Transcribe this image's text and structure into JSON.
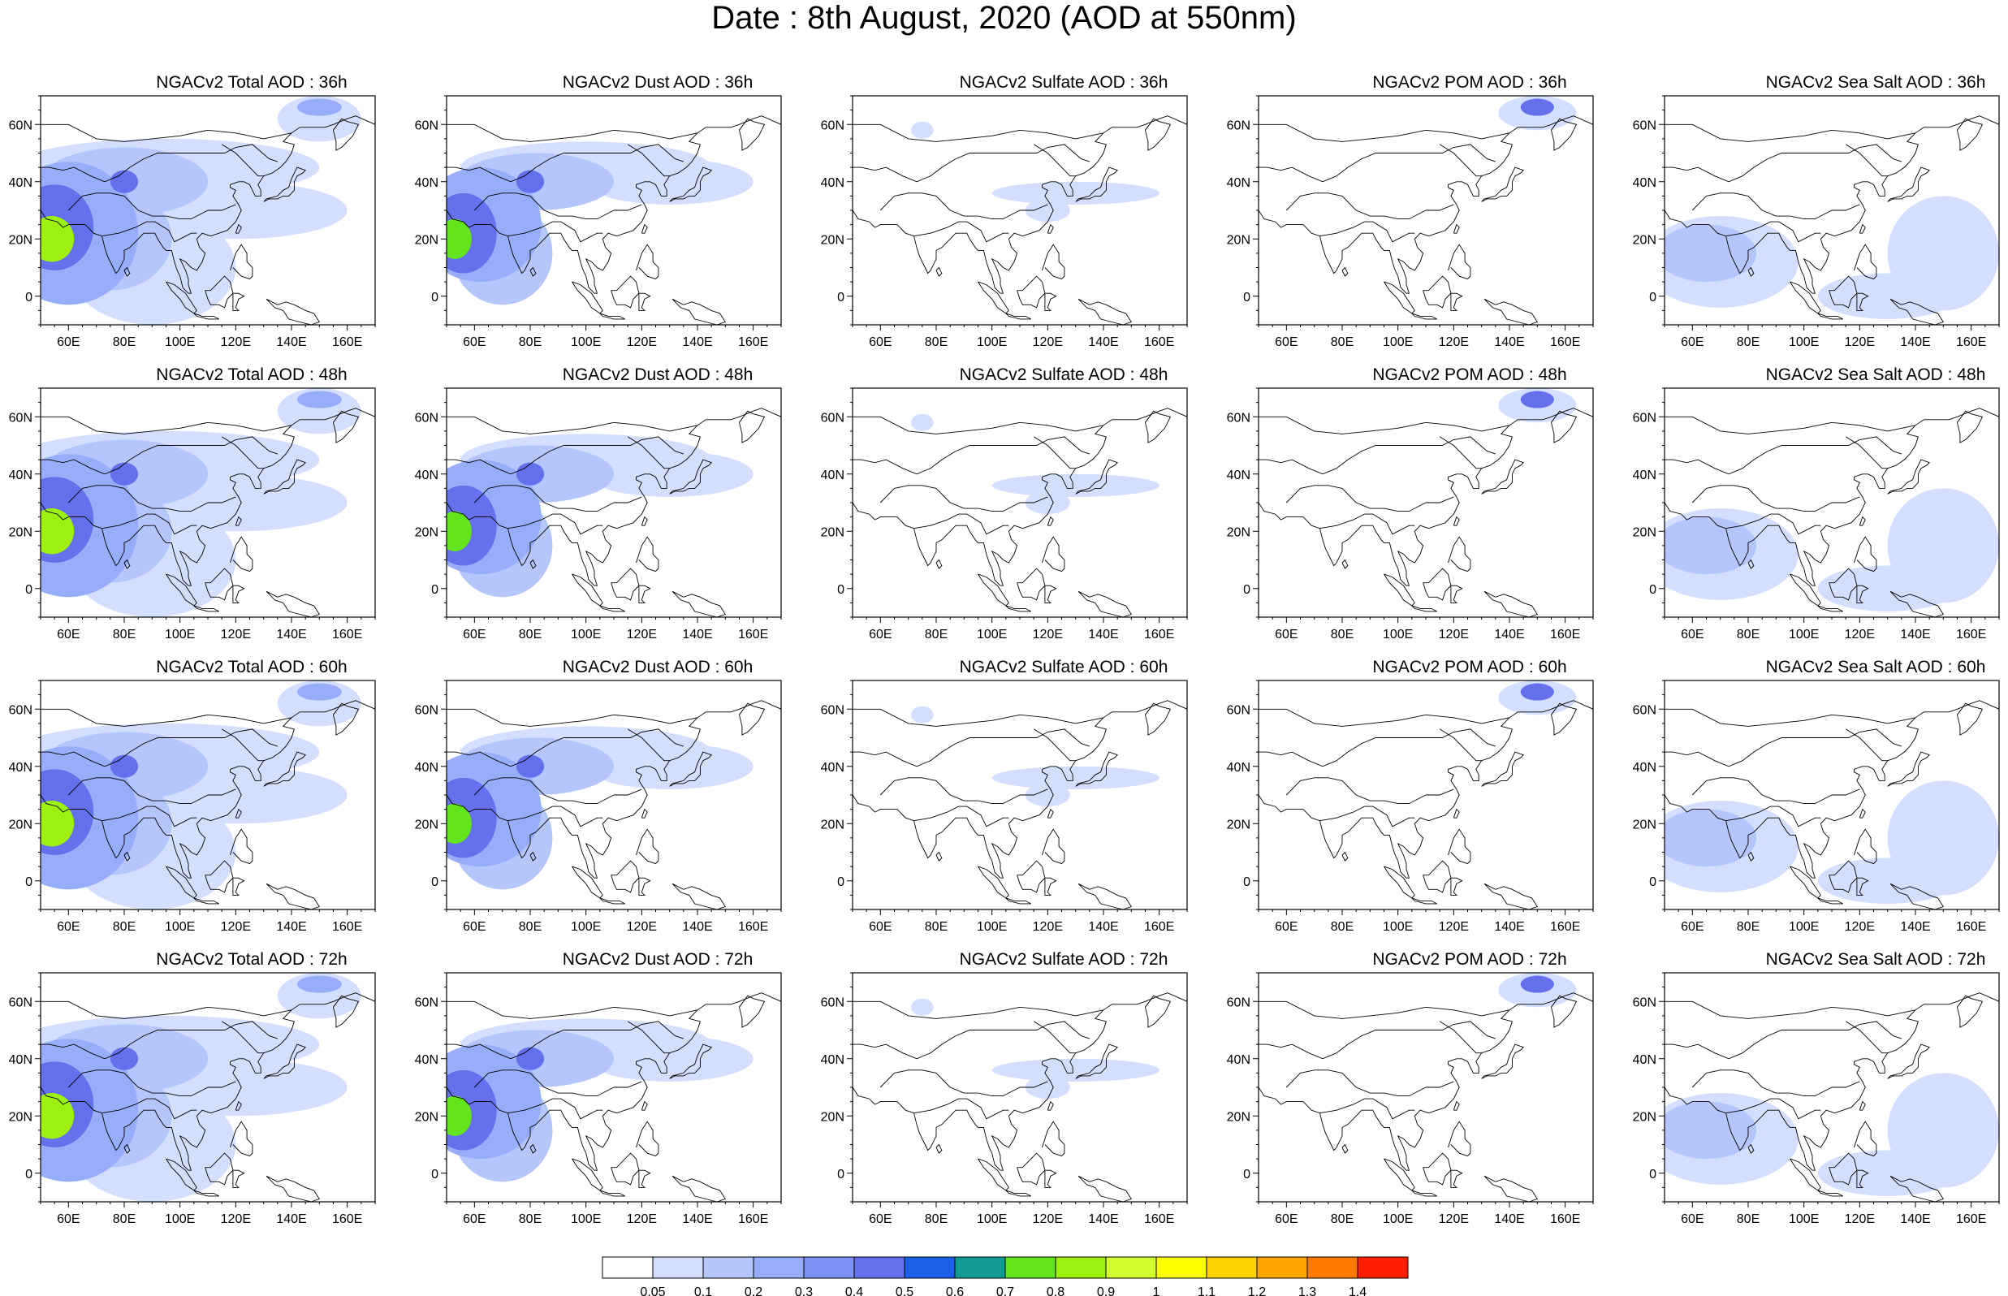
{
  "figure": {
    "title": "Date : 8th August, 2020 (AOD at 550nm)"
  },
  "map": {
    "longitude_range_deg": [
      50,
      170
    ],
    "latitude_range_deg": [
      -10,
      70
    ],
    "lon_tick_labels": [
      "60E",
      "80E",
      "100E",
      "120E",
      "140E",
      "160E"
    ],
    "lon_tick_values": [
      60,
      80,
      100,
      120,
      140,
      160
    ],
    "lat_tick_labels": [
      "60N",
      "40N",
      "20N",
      "0"
    ],
    "lat_tick_values": [
      60,
      40,
      20,
      0
    ]
  },
  "panels": [
    {
      "row": 0,
      "col": 0,
      "title": "NGACv2 Total AOD : 36h",
      "field": "total",
      "hour": 36
    },
    {
      "row": 0,
      "col": 1,
      "title": "NGACv2 Dust AOD : 36h",
      "field": "dust",
      "hour": 36
    },
    {
      "row": 0,
      "col": 2,
      "title": "NGACv2 Sulfate AOD : 36h",
      "field": "sulfate",
      "hour": 36
    },
    {
      "row": 0,
      "col": 3,
      "title": "NGACv2 POM AOD : 36h",
      "field": "pom",
      "hour": 36
    },
    {
      "row": 0,
      "col": 4,
      "title": "NGACv2 Sea Salt AOD : 36h",
      "field": "seasalt",
      "hour": 36
    },
    {
      "row": 1,
      "col": 0,
      "title": "NGACv2 Total AOD : 48h",
      "field": "total",
      "hour": 48
    },
    {
      "row": 1,
      "col": 1,
      "title": "NGACv2 Dust AOD : 48h",
      "field": "dust",
      "hour": 48
    },
    {
      "row": 1,
      "col": 2,
      "title": "NGACv2 Sulfate AOD : 48h",
      "field": "sulfate",
      "hour": 48
    },
    {
      "row": 1,
      "col": 3,
      "title": "NGACv2 POM AOD : 48h",
      "field": "pom",
      "hour": 48
    },
    {
      "row": 1,
      "col": 4,
      "title": "NGACv2 Sea Salt AOD : 48h",
      "field": "seasalt",
      "hour": 48
    },
    {
      "row": 2,
      "col": 0,
      "title": "NGACv2 Total AOD : 60h",
      "field": "total",
      "hour": 60
    },
    {
      "row": 2,
      "col": 1,
      "title": "NGACv2 Dust AOD : 60h",
      "field": "dust",
      "hour": 60
    },
    {
      "row": 2,
      "col": 2,
      "title": "NGACv2 Sulfate AOD : 60h",
      "field": "sulfate",
      "hour": 60
    },
    {
      "row": 2,
      "col": 3,
      "title": "NGACv2 POM AOD : 60h",
      "field": "pom",
      "hour": 60
    },
    {
      "row": 2,
      "col": 4,
      "title": "NGACv2 Sea Salt AOD : 60h",
      "field": "seasalt",
      "hour": 60
    },
    {
      "row": 3,
      "col": 0,
      "title": "NGACv2 Total AOD : 72h",
      "field": "total",
      "hour": 72
    },
    {
      "row": 3,
      "col": 1,
      "title": "NGACv2 Dust AOD : 72h",
      "field": "dust",
      "hour": 72
    },
    {
      "row": 3,
      "col": 2,
      "title": "NGACv2 Sulfate AOD : 72h",
      "field": "sulfate",
      "hour": 72
    },
    {
      "row": 3,
      "col": 3,
      "title": "NGACv2 POM AOD : 72h",
      "field": "pom",
      "hour": 72
    },
    {
      "row": 3,
      "col": 4,
      "title": "NGACv2 Sea Salt  AOD : 72h",
      "field": "seasalt",
      "hour": 72
    }
  ],
  "colorbar": {
    "labels": [
      "0.05",
      "0.1",
      "0.2",
      "0.3",
      "0.4",
      "0.5",
      "0.6",
      "0.7",
      "0.8",
      "0.9",
      "1",
      "1.1",
      "1.2",
      "1.3",
      "1.4"
    ],
    "colors": [
      "#ffffff",
      "#d4deff",
      "#b5c6fd",
      "#98adfa",
      "#7d92f4",
      "#6470ec",
      "#1c5fe8",
      "#109b94",
      "#63e41c",
      "#9ef010",
      "#d4ff30",
      "#ffff00",
      "#ffd200",
      "#ffa500",
      "#ff7a00",
      "#ff1e00"
    ]
  },
  "features": {
    "total": [
      {
        "lon": 54,
        "lat": 20,
        "rx": 8,
        "ry": 8,
        "level": 9
      },
      {
        "lon": 55,
        "lat": 24,
        "rx": 14,
        "ry": 15,
        "level": 5
      },
      {
        "lon": 60,
        "lat": 22,
        "rx": 25,
        "ry": 25,
        "level": 3
      },
      {
        "lon": 80,
        "lat": 40,
        "rx": 5,
        "ry": 4,
        "level": 5
      },
      {
        "lon": 80,
        "lat": 40,
        "rx": 30,
        "ry": 12,
        "level": 2
      },
      {
        "lon": 95,
        "lat": 45,
        "rx": 55,
        "ry": 10,
        "level": 1
      },
      {
        "lon": 75,
        "lat": 20,
        "rx": 22,
        "ry": 18,
        "level": 2
      },
      {
        "lon": 90,
        "lat": 10,
        "rx": 30,
        "ry": 20,
        "level": 1
      },
      {
        "lon": 150,
        "lat": 66,
        "rx": 8,
        "ry": 3,
        "level": 3
      },
      {
        "lon": 150,
        "lat": 62,
        "rx": 15,
        "ry": 8,
        "level": 1
      },
      {
        "lon": 120,
        "lat": 30,
        "rx": 40,
        "ry": 10,
        "level": 1
      }
    ],
    "dust": [
      {
        "lon": 53,
        "lat": 20,
        "rx": 6,
        "ry": 7,
        "level": 8
      },
      {
        "lon": 56,
        "lat": 22,
        "rx": 12,
        "ry": 14,
        "level": 5
      },
      {
        "lon": 62,
        "lat": 25,
        "rx": 22,
        "ry": 20,
        "level": 3
      },
      {
        "lon": 80,
        "lat": 40,
        "rx": 5,
        "ry": 4,
        "level": 5
      },
      {
        "lon": 82,
        "lat": 40,
        "rx": 28,
        "ry": 10,
        "level": 2
      },
      {
        "lon": 100,
        "lat": 45,
        "rx": 45,
        "ry": 9,
        "level": 1
      },
      {
        "lon": 70,
        "lat": 15,
        "rx": 18,
        "ry": 18,
        "level": 2
      },
      {
        "lon": 130,
        "lat": 40,
        "rx": 30,
        "ry": 8,
        "level": 1
      }
    ],
    "sulfate": [
      {
        "lon": 130,
        "lat": 36,
        "rx": 30,
        "ry": 4,
        "level": 1
      },
      {
        "lon": 75,
        "lat": 58,
        "rx": 4,
        "ry": 3,
        "level": 1
      },
      {
        "lon": 120,
        "lat": 30,
        "rx": 8,
        "ry": 4,
        "level": 1
      }
    ],
    "pom": [
      {
        "lon": 150,
        "lat": 66,
        "rx": 6,
        "ry": 3,
        "level": 5
      },
      {
        "lon": 150,
        "lat": 64,
        "rx": 14,
        "ry": 6,
        "level": 1
      }
    ],
    "seasalt": [
      {
        "lon": 65,
        "lat": 15,
        "rx": 18,
        "ry": 10,
        "level": 2
      },
      {
        "lon": 70,
        "lat": 12,
        "rx": 28,
        "ry": 16,
        "level": 1
      },
      {
        "lon": 150,
        "lat": 15,
        "rx": 20,
        "ry": 20,
        "level": 1
      },
      {
        "lon": 130,
        "lat": 0,
        "rx": 25,
        "ry": 8,
        "level": 1
      }
    ]
  }
}
